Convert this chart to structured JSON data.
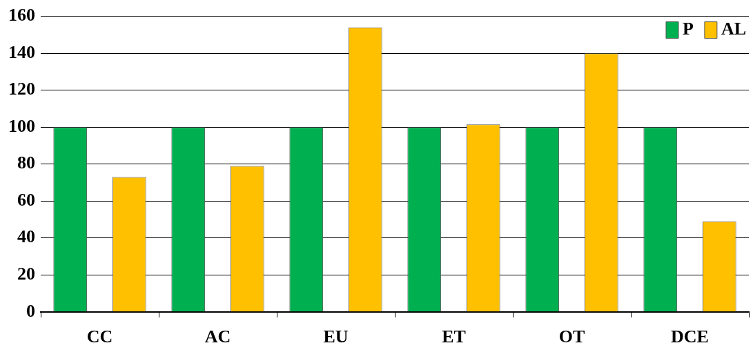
{
  "chart_data": {
    "type": "bar",
    "categories": [
      "CC",
      "AC",
      "EU",
      "ET",
      "OT",
      "DCE"
    ],
    "series": [
      {
        "name": "P",
        "color": "#00b050",
        "values": [
          100,
          100,
          100,
          100,
          100,
          100
        ]
      },
      {
        "name": "AL",
        "color": "#ffc000",
        "values": [
          73,
          79,
          154,
          101.5,
          140,
          49
        ]
      }
    ],
    "ylim": [
      0,
      160
    ],
    "yticks": [
      0,
      20,
      40,
      60,
      80,
      100,
      120,
      140,
      160
    ],
    "grid": "y",
    "legend": "top right"
  }
}
